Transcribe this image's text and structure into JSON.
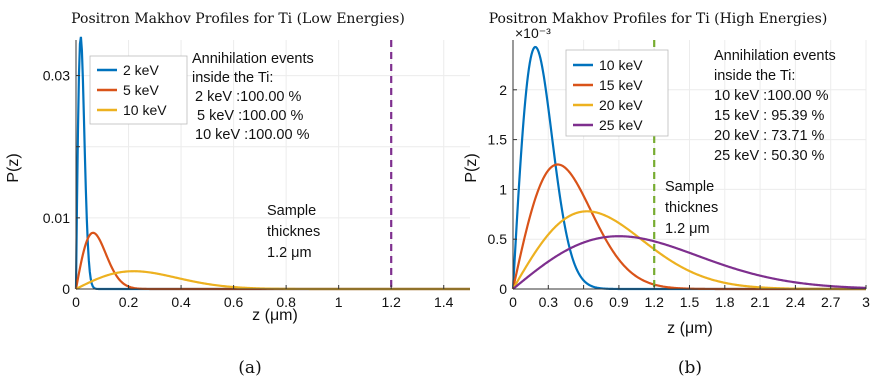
{
  "chart_data": [
    {
      "type": "line",
      "title": "Positron Makhov Profiles for Ti (Low Energies)",
      "xlabel": "z (μm)",
      "ylabel": "P(z)",
      "xlim": [
        0,
        1.5
      ],
      "ylim": [
        0,
        0.035
      ],
      "xticks": [
        0,
        0.2,
        0.4,
        0.6,
        0.8,
        1,
        1.2,
        1.4
      ],
      "xtick_labels": [
        "0",
        "0.2",
        "0.4",
        "0.6",
        "0.8",
        "1",
        "1.2",
        "1.4"
      ],
      "yticks": [
        0,
        0.01,
        0.02,
        0.03
      ],
      "ytick_labels": [
        "0",
        "0.01",
        "",
        "0.03"
      ],
      "y_multiplier": "",
      "grid": true,
      "legend_position": "top-left",
      "series": [
        {
          "name": "2 keV",
          "color": "#0072BD",
          "peak_x": 0.018,
          "peak_y": 0.0355
        },
        {
          "name": "5 keV",
          "color": "#D95319",
          "peak_x": 0.065,
          "peak_y": 0.0079
        },
        {
          "name": "10 keV",
          "color": "#EDB120",
          "peak_x": 0.22,
          "peak_y": 0.0025
        }
      ],
      "annotation_title": [
        "Annihilation events",
        "inside the Ti:"
      ],
      "annotation_lines": [
        "2 keV :100.00 %",
        "5 keV :100.00 %",
        "10 keV :100.00 %"
      ],
      "threshold": {
        "x": 1.2,
        "color": "#7E2F8E",
        "label": [
          "Sample",
          "thicknes",
          "1.2 μm"
        ]
      },
      "caption": "(a)"
    },
    {
      "type": "line",
      "title": "Positron Makhov Profiles for Ti (High Energies)",
      "xlabel": "z (μm)",
      "ylabel": "P(z)",
      "xlim": [
        0,
        3
      ],
      "ylim": [
        0,
        2.5
      ],
      "xticks": [
        0,
        0.3,
        0.6,
        0.9,
        1.2,
        1.5,
        1.8,
        2.1,
        2.4,
        2.7,
        3
      ],
      "xtick_labels": [
        "0",
        "0.3",
        "0.6",
        "0.9",
        "1.2",
        "1.5",
        "1.8",
        "2.1",
        "2.4",
        "2.7",
        "3"
      ],
      "yticks": [
        0,
        0.5,
        1,
        1.5,
        2
      ],
      "ytick_labels": [
        "0",
        "0.5",
        "1",
        "1.5",
        "2"
      ],
      "y_multiplier": "×10⁻³",
      "grid": true,
      "legend_position": "top-left",
      "series": [
        {
          "name": "10 keV",
          "color": "#0072BD",
          "peak_x": 0.19,
          "peak_y": 2.43
        },
        {
          "name": "15 keV",
          "color": "#D95319",
          "peak_x": 0.38,
          "peak_y": 1.25
        },
        {
          "name": "20 keV",
          "color": "#EDB120",
          "peak_x": 0.63,
          "peak_y": 0.78
        },
        {
          "name": "25 keV",
          "color": "#7E2F8E",
          "peak_x": 0.9,
          "peak_y": 0.53
        }
      ],
      "annotation_title": [
        "Annihilation events",
        "inside the Ti:"
      ],
      "annotation_lines": [
        "10 keV :100.00 %",
        "15 keV : 95.39 %",
        "20 keV : 73.71 %",
        "25 keV : 50.30 %"
      ],
      "threshold": {
        "x": 1.2,
        "color": "#77AC30",
        "label": [
          "Sample",
          "thicknes",
          "1.2 μm"
        ]
      },
      "caption": "(b)"
    }
  ]
}
